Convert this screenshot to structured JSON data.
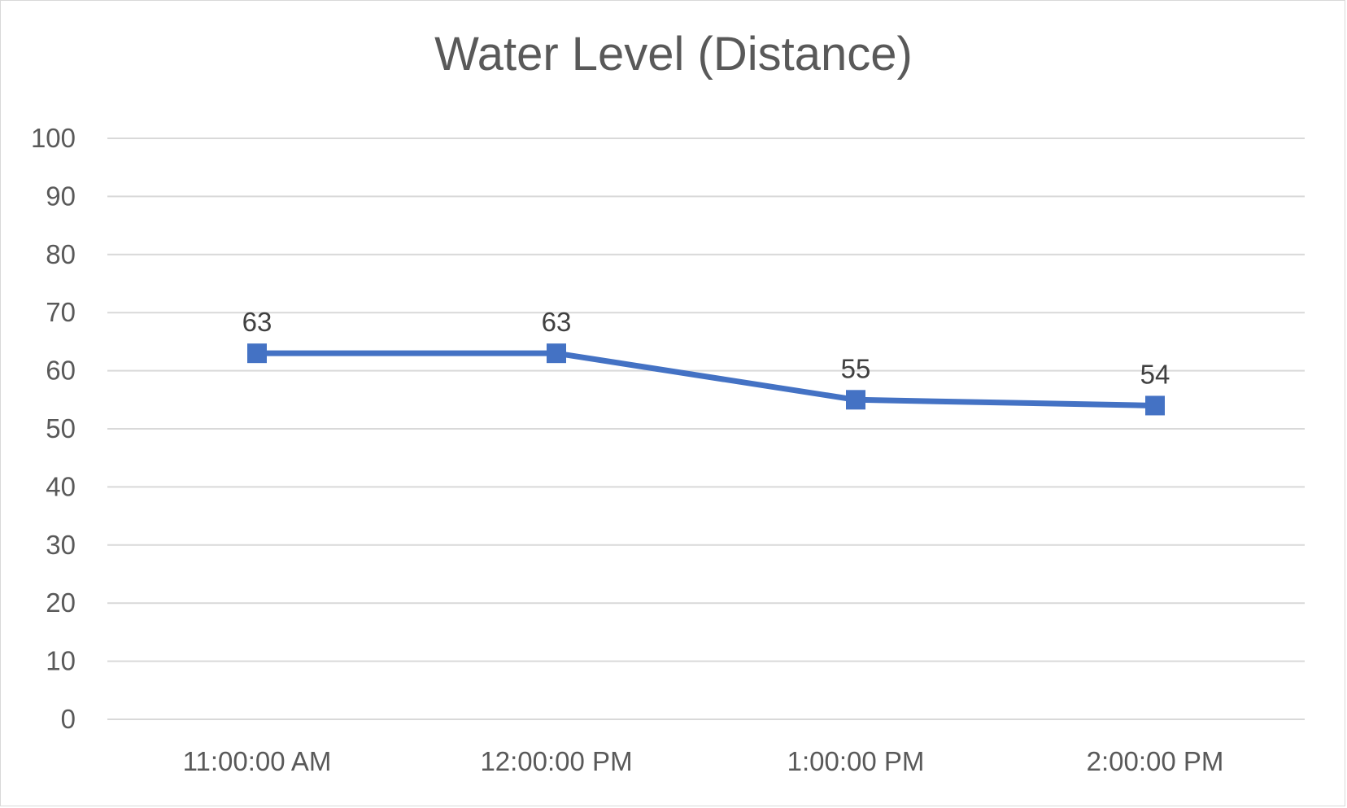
{
  "chart_data": {
    "type": "line",
    "title": "Water Level (Distance)",
    "xlabel": "",
    "ylabel": "",
    "categories": [
      "11:00:00 AM",
      "12:00:00 PM",
      "1:00:00 PM",
      "2:00:00 PM"
    ],
    "series": [
      {
        "values": [
          63,
          63,
          55,
          54
        ],
        "color": "#4472c4",
        "marker": "square",
        "data_labels": true
      }
    ],
    "ylim": [
      0,
      100
    ],
    "yticks": [
      0,
      10,
      20,
      30,
      40,
      50,
      60,
      70,
      80,
      90,
      100
    ],
    "grid": true,
    "legend": "none"
  },
  "colors": {
    "series": "#4472c4",
    "grid": "#d9d9d9",
    "text": "#595959"
  }
}
